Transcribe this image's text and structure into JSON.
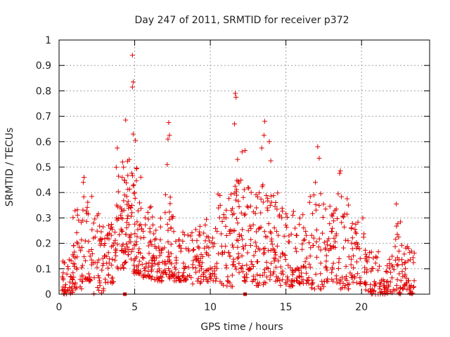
{
  "chart_data": {
    "type": "scatter",
    "title": "Day 247 of 2011, SRMTID for receiver p372",
    "xlabel": "GPS time / hours",
    "ylabel": "SRMTID / TECUs",
    "xlim": [
      0,
      24.5
    ],
    "ylim": [
      0,
      1
    ],
    "xticks": [
      0,
      5,
      10,
      15,
      20
    ],
    "yticks": [
      0,
      0.1,
      0.2,
      0.3,
      0.4,
      0.5,
      0.6,
      0.7,
      0.8,
      0.9,
      1
    ],
    "ytick_labels": [
      "0",
      "0.1",
      "0.2",
      "0.3",
      "0.4",
      "0.5",
      "0.6",
      "0.7",
      "0.8",
      "0.9",
      "1"
    ],
    "grid": true,
    "marker": "+",
    "color": "#e00000",
    "highlight_points": [
      {
        "x": 4.85,
        "y": 0.94
      },
      {
        "x": 4.9,
        "y": 0.835
      },
      {
        "x": 4.85,
        "y": 0.815
      },
      {
        "x": 11.65,
        "y": 0.79
      },
      {
        "x": 11.7,
        "y": 0.775
      },
      {
        "x": 7.25,
        "y": 0.675
      },
      {
        "x": 13.6,
        "y": 0.68
      },
      {
        "x": 4.4,
        "y": 0.685
      },
      {
        "x": 11.6,
        "y": 0.67
      },
      {
        "x": 7.3,
        "y": 0.625
      },
      {
        "x": 13.55,
        "y": 0.625
      },
      {
        "x": 4.9,
        "y": 0.63
      },
      {
        "x": 7.2,
        "y": 0.61
      },
      {
        "x": 5.05,
        "y": 0.605
      },
      {
        "x": 13.9,
        "y": 0.6
      },
      {
        "x": 17.1,
        "y": 0.58
      },
      {
        "x": 3.85,
        "y": 0.575
      },
      {
        "x": 13.4,
        "y": 0.575
      },
      {
        "x": 12.1,
        "y": 0.56
      },
      {
        "x": 12.3,
        "y": 0.565
      },
      {
        "x": 17.2,
        "y": 0.535
      },
      {
        "x": 4.2,
        "y": 0.52
      },
      {
        "x": 11.8,
        "y": 0.53
      },
      {
        "x": 14.0,
        "y": 0.525
      },
      {
        "x": 7.15,
        "y": 0.51
      },
      {
        "x": 18.6,
        "y": 0.485
      },
      {
        "x": 18.55,
        "y": 0.475
      },
      {
        "x": 1.65,
        "y": 0.46
      },
      {
        "x": 1.6,
        "y": 0.44
      },
      {
        "x": 16.95,
        "y": 0.44
      },
      {
        "x": 22.3,
        "y": 0.355
      },
      {
        "x": 23.1,
        "y": 0.18
      }
    ],
    "clusters": [
      {
        "x": [
          0.2,
          0.9
        ],
        "y": [
          0,
          0.14
        ],
        "n": 38
      },
      {
        "x": [
          0.9,
          1.5
        ],
        "y": [
          0.02,
          0.35
        ],
        "n": 36
      },
      {
        "x": [
          1.5,
          2.2
        ],
        "y": [
          0.05,
          0.4
        ],
        "n": 42
      },
      {
        "x": [
          2.2,
          3.0
        ],
        "y": [
          0.0,
          0.32
        ],
        "n": 40
      },
      {
        "x": [
          3.0,
          3.7
        ],
        "y": [
          0.04,
          0.28
        ],
        "n": 38
      },
      {
        "x": [
          3.7,
          4.3
        ],
        "y": [
          0.1,
          0.5
        ],
        "n": 40
      },
      {
        "x": [
          4.3,
          4.9
        ],
        "y": [
          0.12,
          0.6
        ],
        "n": 48
      },
      {
        "x": [
          4.9,
          5.5
        ],
        "y": [
          0.08,
          0.5
        ],
        "n": 48
      },
      {
        "x": [
          5.5,
          6.2
        ],
        "y": [
          0.06,
          0.35
        ],
        "n": 44
      },
      {
        "x": [
          6.2,
          7.0
        ],
        "y": [
          0.05,
          0.3
        ],
        "n": 44
      },
      {
        "x": [
          7.0,
          7.6
        ],
        "y": [
          0.06,
          0.4
        ],
        "n": 40
      },
      {
        "x": [
          7.6,
          8.5
        ],
        "y": [
          0.05,
          0.26
        ],
        "n": 44
      },
      {
        "x": [
          8.5,
          9.5
        ],
        "y": [
          0.04,
          0.28
        ],
        "n": 46
      },
      {
        "x": [
          9.5,
          10.5
        ],
        "y": [
          0.05,
          0.3
        ],
        "n": 46
      },
      {
        "x": [
          10.5,
          11.5
        ],
        "y": [
          0.03,
          0.42
        ],
        "n": 48
      },
      {
        "x": [
          11.5,
          12.2
        ],
        "y": [
          0.08,
          0.45
        ],
        "n": 44
      },
      {
        "x": [
          12.2,
          13.0
        ],
        "y": [
          0.05,
          0.42
        ],
        "n": 44
      },
      {
        "x": [
          13.0,
          13.8
        ],
        "y": [
          0.03,
          0.45
        ],
        "n": 46
      },
      {
        "x": [
          13.8,
          14.6
        ],
        "y": [
          0.05,
          0.4
        ],
        "n": 44
      },
      {
        "x": [
          14.6,
          15.5
        ],
        "y": [
          0.03,
          0.35
        ],
        "n": 44
      },
      {
        "x": [
          15.5,
          16.5
        ],
        "y": [
          0.04,
          0.35
        ],
        "n": 46
      },
      {
        "x": [
          16.5,
          17.5
        ],
        "y": [
          0.02,
          0.4
        ],
        "n": 44
      },
      {
        "x": [
          17.5,
          18.3
        ],
        "y": [
          0.05,
          0.35
        ],
        "n": 42
      },
      {
        "x": [
          18.3,
          19.2
        ],
        "y": [
          0.02,
          0.4
        ],
        "n": 42
      },
      {
        "x": [
          19.2,
          20.2
        ],
        "y": [
          0.04,
          0.3
        ],
        "n": 42
      },
      {
        "x": [
          20.2,
          21.2
        ],
        "y": [
          0.0,
          0.18
        ],
        "n": 44
      },
      {
        "x": [
          21.2,
          22.2
        ],
        "y": [
          0.0,
          0.15
        ],
        "n": 42
      },
      {
        "x": [
          22.2,
          22.8
        ],
        "y": [
          0.0,
          0.3
        ],
        "n": 34
      },
      {
        "x": [
          22.8,
          23.5
        ],
        "y": [
          0.0,
          0.2
        ],
        "n": 36
      }
    ],
    "zero_markers": [
      {
        "x": 4.35,
        "y": 0
      },
      {
        "x": 12.3,
        "y": 0
      }
    ]
  }
}
